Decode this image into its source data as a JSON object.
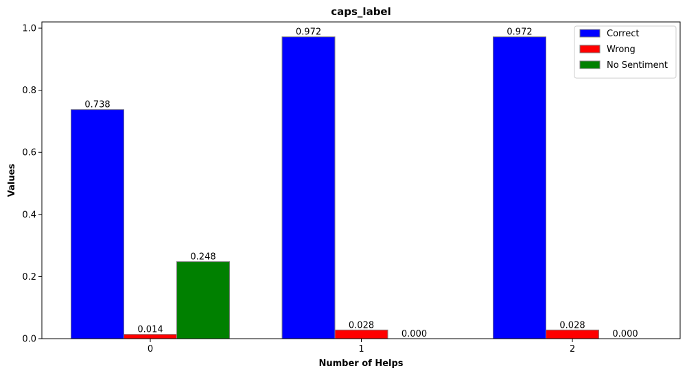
{
  "chart_data": {
    "type": "bar",
    "title": "caps_label",
    "xlabel": "Number of Helps",
    "ylabel": "Values",
    "categories": [
      "0",
      "1",
      "2"
    ],
    "series": [
      {
        "name": "Correct",
        "color": "#0000ff",
        "values": [
          0.738,
          0.972,
          0.972
        ],
        "labels": [
          "0.738",
          "0.972",
          "0.972"
        ]
      },
      {
        "name": "Wrong",
        "color": "#ff0000",
        "values": [
          0.014,
          0.028,
          0.028
        ],
        "labels": [
          "0.014",
          "0.028",
          "0.028"
        ]
      },
      {
        "name": "No Sentiment",
        "color": "#008000",
        "values": [
          0.248,
          0.0,
          0.0
        ],
        "labels": [
          "0.248",
          "0.000",
          "0.000"
        ]
      }
    ],
    "ylim": [
      0,
      1.02
    ],
    "yticks": [
      0.0,
      0.2,
      0.4,
      0.6,
      0.8,
      1.0
    ],
    "ytick_labels": [
      "0.0",
      "0.2",
      "0.4",
      "0.6",
      "0.8",
      "1.0"
    ],
    "grid": false,
    "legend_position": "top-right",
    "bar_edge_color": "#808080"
  }
}
